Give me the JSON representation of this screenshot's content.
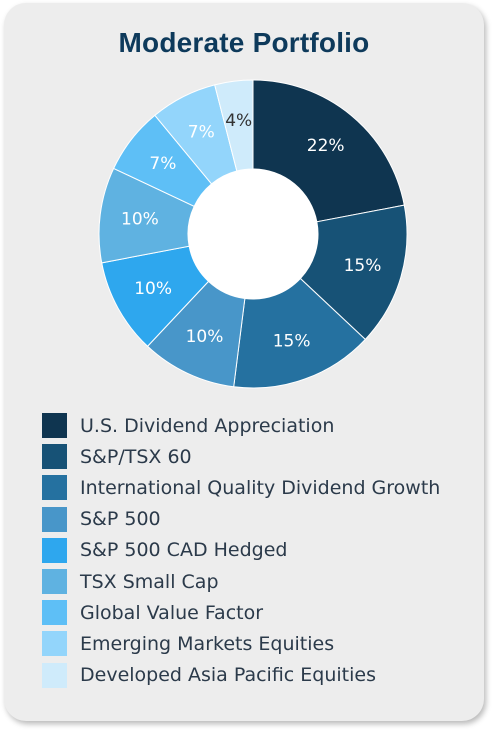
{
  "chart_data": {
    "type": "pie",
    "title": "Moderate Portfolio",
    "legend_position": "bottom",
    "series": [
      {
        "name": "U.S. Dividend Appreciation",
        "value": 22,
        "label": "22%",
        "color": "#0f3550",
        "label_color": "#ffffff"
      },
      {
        "name": "S&P/TSX 60",
        "value": 15,
        "label": "15%",
        "color": "#175276",
        "label_color": "#ffffff"
      },
      {
        "name": "International Quality Dividend Growth",
        "value": 15,
        "label": "15%",
        "color": "#2571a0",
        "label_color": "#ffffff"
      },
      {
        "name": "S&P 500",
        "value": 10,
        "label": "10%",
        "color": "#4896c9",
        "label_color": "#ffffff"
      },
      {
        "name": "S&P 500 CAD Hedged",
        "value": 10,
        "label": "10%",
        "color": "#2ea7ee",
        "label_color": "#ffffff"
      },
      {
        "name": "TSX Small Cap",
        "value": 10,
        "label": "10%",
        "color": "#5fb2e1",
        "label_color": "#ffffff"
      },
      {
        "name": "Global Value Factor",
        "value": 7,
        "label": "7%",
        "color": "#5ebff6",
        "label_color": "#ffffff"
      },
      {
        "name": "Emerging Markets Equities",
        "value": 7,
        "label": "7%",
        "color": "#93d5fb",
        "label_color": "#ffffff"
      },
      {
        "name": "Developed Asia Pacific Equities",
        "value": 4,
        "label": "4%",
        "color": "#cfebfb",
        "label_color": "#333333"
      }
    ]
  }
}
